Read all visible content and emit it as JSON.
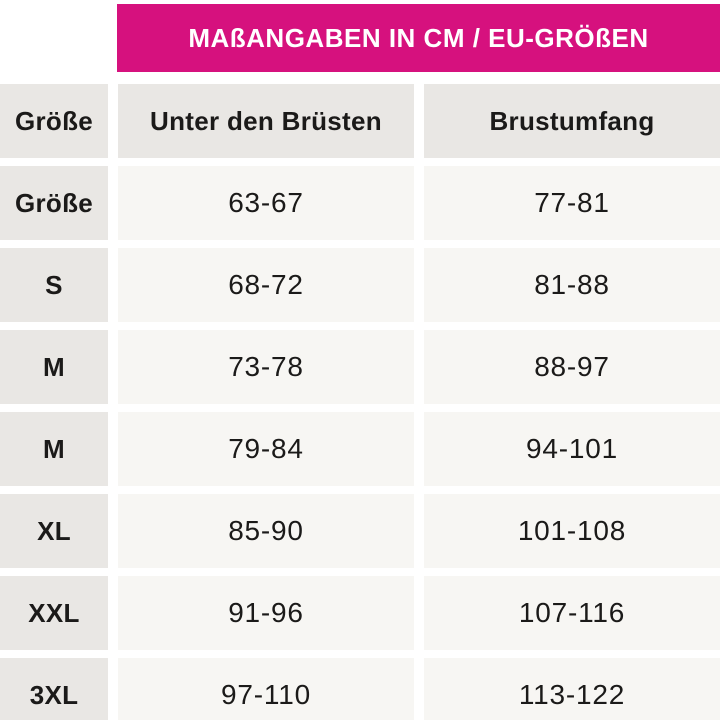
{
  "banner": {
    "title": "MAßANGABEN IN CM / EU-GRÖßEN",
    "background_color": "#d6117e",
    "text_color": "#ffffff"
  },
  "colors": {
    "label_cell_background": "#e9e7e4",
    "value_cell_background": "#f7f6f3",
    "text": "#1b1a19",
    "page_background": "#ffffff"
  },
  "chart_data": {
    "type": "table",
    "title": "MAßANGABEN IN CM / EU-GRÖßEN",
    "columns": [
      "Größe",
      "Unter den Brüsten",
      "Brustumfang"
    ],
    "rows": [
      [
        "Größe",
        "63-67",
        "77-81"
      ],
      [
        "S",
        "68-72",
        "81-88"
      ],
      [
        "M",
        "73-78",
        "88-97"
      ],
      [
        "M",
        "79-84",
        "94-101"
      ],
      [
        "XL",
        "85-90",
        "101-108"
      ],
      [
        "XXL",
        "91-96",
        "107-116"
      ],
      [
        "3XL",
        "97-110",
        "113-122"
      ]
    ]
  }
}
